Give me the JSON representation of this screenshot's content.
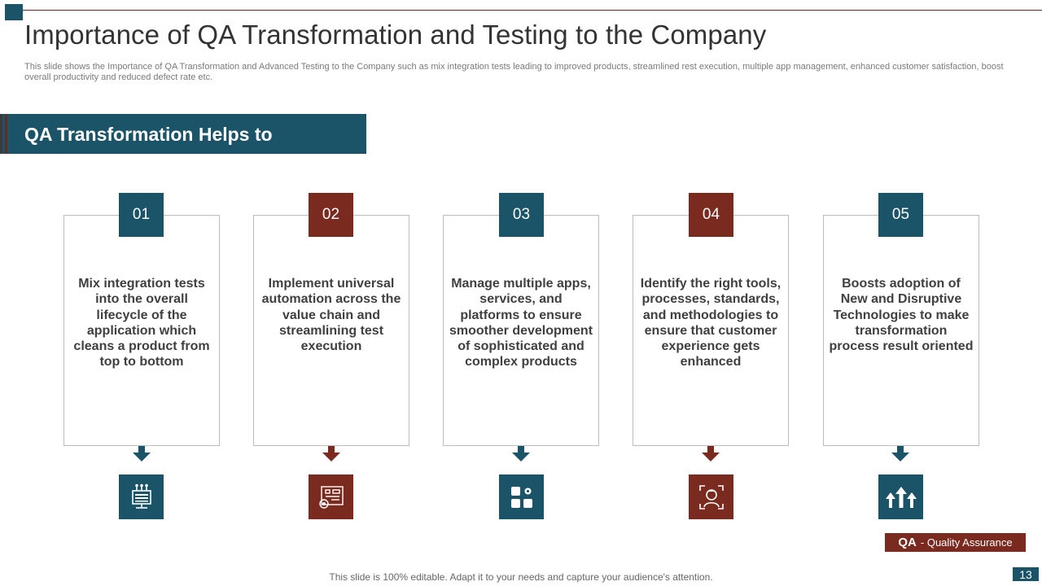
{
  "slide": {
    "title": "Importance of QA Transformation and Testing to the Company",
    "subtitle": "This slide shows the Importance of QA  Transformation and Advanced Testing to the Company such as mix integration tests leading to improved products, streamlined rest execution, multiple app management, enhanced customer satisfaction, boost overall productivity and reduced defect rate etc.",
    "banner": "QA Transformation Helps to",
    "cards": [
      {
        "number": "01",
        "color": "#1b5468",
        "icon": "network-device-icon",
        "text": "Mix integration tests into the overall lifecycle of the application which cleans a product from top to bottom"
      },
      {
        "number": "02",
        "color": "#7a2a1f",
        "icon": "circuit-gear-icon",
        "text": "Implement universal automation across the value chain and streamlining test  execution"
      },
      {
        "number": "03",
        "color": "#1b5468",
        "icon": "apps-grid-icon",
        "text": "Manage multiple apps, services,  and platforms to ensure smoother development of sophisticated  and complex products"
      },
      {
        "number": "04",
        "color": "#7a2a1f",
        "icon": "face-scan-icon",
        "text": "Identify  the right tools,  processes,  standards,  and methodologies to ensure that customer experience gets enhanced"
      },
      {
        "number": "05",
        "color": "#1b5468",
        "icon": "growth-arrows-icon",
        "text": "Boosts  adoption of New and Disruptive Technologies to make transformation process result oriented"
      }
    ],
    "legend": {
      "abbr": "QA",
      "full": "- Quality Assurance"
    },
    "footer": "This slide is 100% editable. Adapt it to your needs and capture your audience's attention.",
    "page_number": "13"
  }
}
